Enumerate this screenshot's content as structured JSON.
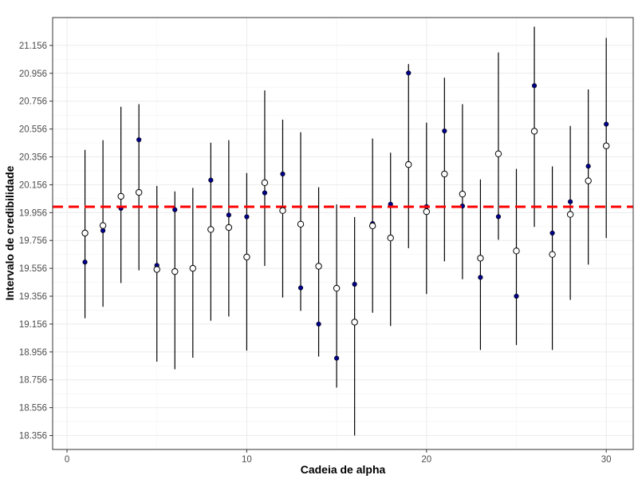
{
  "chart_data": {
    "type": "scatter",
    "xlabel": "Cadeia de alpha",
    "ylabel": "Intervalo de credibilidade",
    "xlim": [
      -0.8,
      31.5
    ],
    "ylim": [
      18.256,
      21.356
    ],
    "xticks": [
      0,
      10,
      20,
      30
    ],
    "yticks": [
      18.356,
      18.556,
      18.756,
      18.956,
      19.156,
      19.356,
      19.556,
      19.756,
      19.956,
      20.156,
      20.356,
      20.556,
      20.756,
      20.956,
      21.156
    ],
    "grid": true,
    "reference_line": {
      "value": 19.998,
      "color": "#ff0000",
      "style": "dashed"
    },
    "x": [
      1,
      2,
      3,
      4,
      5,
      6,
      7,
      8,
      9,
      10,
      11,
      12,
      13,
      14,
      15,
      16,
      17,
      18,
      19,
      20,
      21,
      22,
      23,
      24,
      25,
      26,
      27,
      28,
      29,
      30
    ],
    "series": [
      {
        "marker": "filled-circle",
        "color": "#00008b",
        "values": [
          19.601,
          19.827,
          19.987,
          20.479,
          19.577,
          19.977,
          19.556,
          20.189,
          19.939,
          19.926,
          20.098,
          20.233,
          19.416,
          19.156,
          18.911,
          19.442,
          19.877,
          20.016,
          20.958,
          19.999,
          20.542,
          20.003,
          19.491,
          19.927,
          19.356,
          20.867,
          19.809,
          20.034,
          20.289,
          20.591
        ]
      },
      {
        "marker": "open-circle",
        "color": "#ffffff",
        "values": [
          19.809,
          19.863,
          20.073,
          20.101,
          19.548,
          19.533,
          19.556,
          19.835,
          19.849,
          19.637,
          20.171,
          19.971,
          19.873,
          19.571,
          19.413,
          19.17,
          19.861,
          19.774,
          20.301,
          19.963,
          20.233,
          20.089,
          19.629,
          20.378,
          19.681,
          20.54,
          19.656,
          19.943,
          20.184,
          20.435
        ]
      }
    ],
    "intervals": [
      [
        19.198,
        20.406
      ],
      [
        19.28,
        20.476
      ],
      [
        19.451,
        20.716
      ],
      [
        19.542,
        20.734
      ],
      [
        18.886,
        20.148
      ],
      [
        18.832,
        20.108
      ],
      [
        18.914,
        20.133
      ],
      [
        19.18,
        20.458
      ],
      [
        19.21,
        20.476
      ],
      [
        18.966,
        20.24
      ],
      [
        19.573,
        20.833
      ],
      [
        19.346,
        20.623
      ],
      [
        19.251,
        20.533
      ],
      [
        18.923,
        20.138
      ],
      [
        18.7,
        20.015
      ],
      [
        18.356,
        19.924
      ],
      [
        19.237,
        20.488
      ],
      [
        19.142,
        20.386
      ],
      [
        19.701,
        21.022
      ],
      [
        19.372,
        20.602
      ],
      [
        19.606,
        20.925
      ],
      [
        19.478,
        20.734
      ],
      [
        18.97,
        20.194
      ],
      [
        19.761,
        21.105
      ],
      [
        19.005,
        20.27
      ],
      [
        19.853,
        21.291
      ],
      [
        18.97,
        20.288
      ],
      [
        19.33,
        20.578
      ],
      [
        19.583,
        20.84
      ],
      [
        19.774,
        21.21
      ]
    ]
  }
}
